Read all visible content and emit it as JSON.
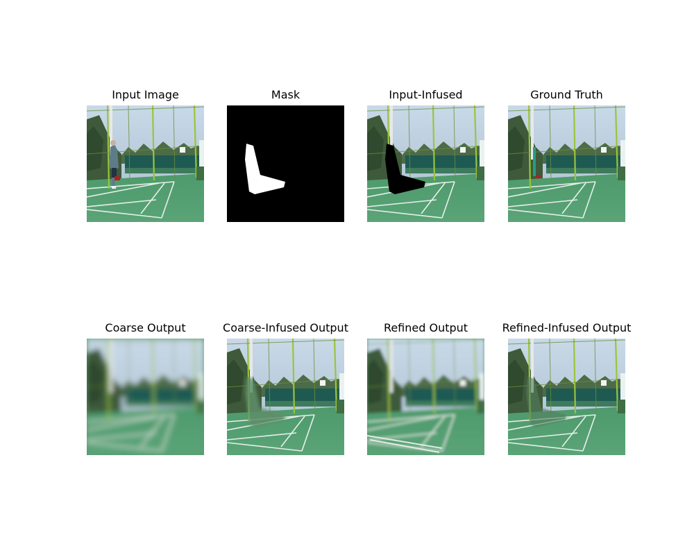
{
  "figure": {
    "panels": [
      {
        "id": "input",
        "title": "Input Image",
        "icon": "court-scene-with-player"
      },
      {
        "id": "mask",
        "title": "Mask",
        "icon": "mask-white-l-shape"
      },
      {
        "id": "input_infused",
        "title": "Input-Infused",
        "icon": "court-scene-black-hole"
      },
      {
        "id": "ground_truth",
        "title": "Ground Truth",
        "icon": "court-scene"
      },
      {
        "id": "coarse",
        "title": "Coarse Output",
        "icon": "blurry-court-scene"
      },
      {
        "id": "coarse_infused",
        "title": "Coarse-Infused Output",
        "icon": "court-scene-inpainted"
      },
      {
        "id": "refined",
        "title": "Refined Output",
        "icon": "court-scene-refined"
      },
      {
        "id": "refined_infused",
        "title": "Refined-Infused Output",
        "icon": "court-scene-inpainted"
      }
    ]
  }
}
